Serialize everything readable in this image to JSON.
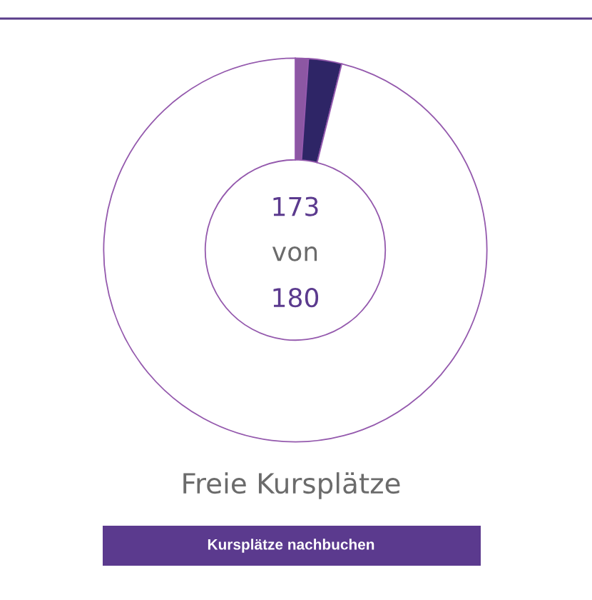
{
  "chart_data": {
    "type": "donut",
    "title": "Freie Kursplätze",
    "categories": [
      null,
      null,
      null
    ],
    "values": [
      1.1,
      2.8,
      96.1
    ],
    "colors": [
      "#8c57a3",
      "#2e2566",
      "#ffffff"
    ],
    "annotations": [
      "173",
      "von",
      "180",
      "Kursplätze nachbuchen"
    ]
  }
}
